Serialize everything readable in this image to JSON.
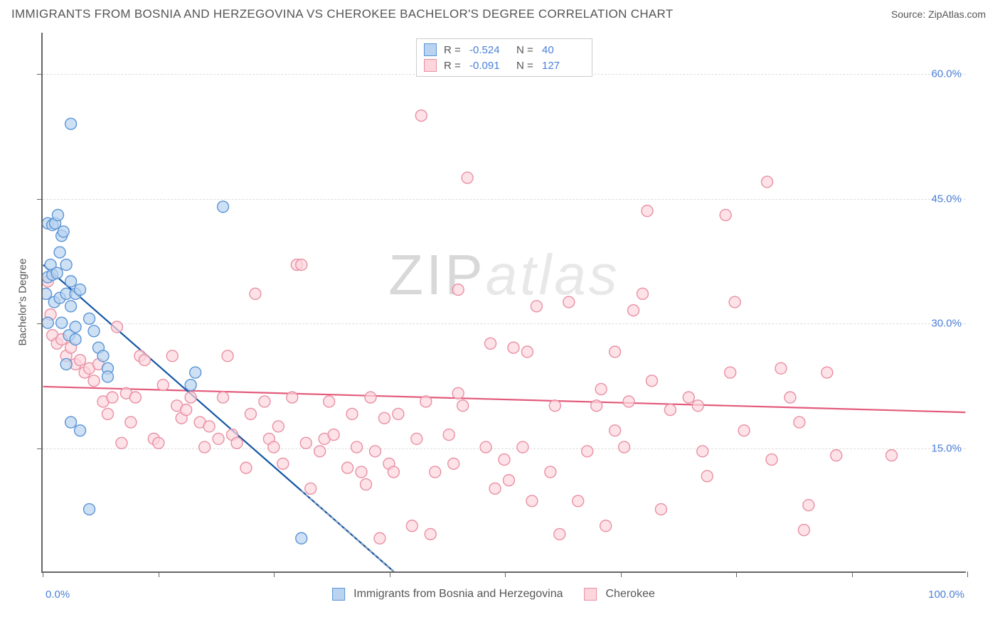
{
  "header": {
    "title": "IMMIGRANTS FROM BOSNIA AND HERZEGOVINA VS CHEROKEE BACHELOR'S DEGREE CORRELATION CHART",
    "source": "Source: ZipAtlas.com"
  },
  "watermark": {
    "part1": "ZIP",
    "part2": "atlas"
  },
  "chart": {
    "type": "scatter",
    "xlim": [
      0,
      100
    ],
    "ylim": [
      0,
      65
    ],
    "x_min_label": "0.0%",
    "x_max_label": "100.0%",
    "yticks": [
      15,
      30,
      45,
      60
    ],
    "ytick_labels": [
      "15.0%",
      "30.0%",
      "45.0%",
      "60.0%"
    ],
    "xtick_positions": [
      0,
      12.5,
      25,
      37.5,
      50,
      62.5,
      75,
      87.5,
      100
    ],
    "yaxis_title": "Bachelor's Degree",
    "grid_color": "#dddddd",
    "axis_color": "#666666",
    "background_color": "#ffffff",
    "marker_radius": 8,
    "marker_stroke_width": 1.4,
    "trend_line_width": 2.2,
    "trend_dash": "4,4",
    "series": [
      {
        "key": "bosnia",
        "label": "Immigrants from Bosnia and Herzegovina",
        "fill_color": "#b9d3f0",
        "stroke_color": "#5a94d6",
        "line_color": "#1255a5",
        "R_label": "R =",
        "R": "-0.524",
        "N_label": "N =",
        "N": "40",
        "trend": {
          "x1": 0,
          "y1": 37,
          "x2": 38,
          "y2": 0
        },
        "points": [
          [
            0.5,
            42
          ],
          [
            1,
            41.8
          ],
          [
            1.3,
            42
          ],
          [
            1.6,
            43
          ],
          [
            2,
            40.5
          ],
          [
            2.2,
            41
          ],
          [
            1.8,
            38.5
          ],
          [
            2.5,
            37
          ],
          [
            0.8,
            37
          ],
          [
            0.5,
            35.5
          ],
          [
            1,
            35.8
          ],
          [
            0.3,
            33.5
          ],
          [
            1.2,
            32.5
          ],
          [
            1.8,
            33
          ],
          [
            2.5,
            33.5
          ],
          [
            3,
            35
          ],
          [
            3,
            32
          ],
          [
            3.5,
            33.5
          ],
          [
            2,
            30
          ],
          [
            2.8,
            28.5
          ],
          [
            3.5,
            29.5
          ],
          [
            3.5,
            28
          ],
          [
            5,
            30.5
          ],
          [
            5.5,
            29
          ],
          [
            6,
            27
          ],
          [
            6.5,
            26
          ],
          [
            7,
            24.5
          ],
          [
            7,
            23.5
          ],
          [
            3,
            18
          ],
          [
            4,
            17
          ],
          [
            5,
            7.5
          ],
          [
            16,
            22.5
          ],
          [
            16.5,
            24
          ],
          [
            19.5,
            44
          ],
          [
            3,
            54
          ],
          [
            28,
            4
          ],
          [
            2.5,
            25
          ],
          [
            0.5,
            30
          ],
          [
            1.5,
            36
          ],
          [
            4,
            34
          ]
        ]
      },
      {
        "key": "cherokee",
        "label": "Cherokee",
        "fill_color": "#fcd5dd",
        "stroke_color": "#e98fa3",
        "line_color": "#e35a7a",
        "R_label": "R =",
        "R": "-0.091",
        "N_label": "N =",
        "N": "127",
        "trend": {
          "x1": 0,
          "y1": 22.3,
          "x2": 100,
          "y2": 19.2
        },
        "points": [
          [
            0.5,
            35
          ],
          [
            0.8,
            31
          ],
          [
            1,
            28.5
          ],
          [
            1.5,
            27.5
          ],
          [
            2,
            28
          ],
          [
            2.5,
            26
          ],
          [
            3,
            27
          ],
          [
            3.5,
            25
          ],
          [
            4,
            25.5
          ],
          [
            4.5,
            24
          ],
          [
            5,
            24.5
          ],
          [
            5.5,
            23
          ],
          [
            6,
            25
          ],
          [
            6.5,
            20.5
          ],
          [
            7,
            19
          ],
          [
            7.5,
            21
          ],
          [
            8,
            29.5
          ],
          [
            8.5,
            15.5
          ],
          [
            9,
            21.5
          ],
          [
            9.5,
            18
          ],
          [
            10,
            21
          ],
          [
            10.5,
            26
          ],
          [
            11,
            25.5
          ],
          [
            12,
            16
          ],
          [
            12.5,
            15.5
          ],
          [
            13,
            22.5
          ],
          [
            14,
            26
          ],
          [
            14.5,
            20
          ],
          [
            15,
            18.5
          ],
          [
            15.5,
            19.5
          ],
          [
            16,
            21
          ],
          [
            17,
            18
          ],
          [
            17.5,
            15
          ],
          [
            18,
            17.5
          ],
          [
            19,
            16
          ],
          [
            19.5,
            21
          ],
          [
            20,
            26
          ],
          [
            20.5,
            16.5
          ],
          [
            21,
            15.5
          ],
          [
            22,
            12.5
          ],
          [
            22.5,
            19
          ],
          [
            23,
            33.5
          ],
          [
            24,
            20.5
          ],
          [
            24.5,
            16
          ],
          [
            25,
            15
          ],
          [
            25.5,
            17.5
          ],
          [
            26,
            13
          ],
          [
            27,
            21
          ],
          [
            27.5,
            37
          ],
          [
            28,
            37
          ],
          [
            28.5,
            15.5
          ],
          [
            29,
            10
          ],
          [
            30,
            14.5
          ],
          [
            30.5,
            16
          ],
          [
            31,
            20.5
          ],
          [
            31.5,
            16.5
          ],
          [
            33,
            12.5
          ],
          [
            34,
            15
          ],
          [
            34.5,
            12
          ],
          [
            35,
            10.5
          ],
          [
            35.5,
            21
          ],
          [
            36,
            14.5
          ],
          [
            37,
            18.5
          ],
          [
            37.5,
            13
          ],
          [
            38,
            12
          ],
          [
            40,
            5.5
          ],
          [
            40.5,
            16
          ],
          [
            41,
            55
          ],
          [
            41.5,
            20.5
          ],
          [
            42,
            4.5
          ],
          [
            42.5,
            12
          ],
          [
            44,
            16.5
          ],
          [
            44.5,
            13
          ],
          [
            45,
            34
          ],
          [
            45.5,
            20
          ],
          [
            46,
            47.5
          ],
          [
            48,
            15
          ],
          [
            48.5,
            27.5
          ],
          [
            49,
            10
          ],
          [
            50,
            13.5
          ],
          [
            50.5,
            11
          ],
          [
            51,
            27
          ],
          [
            52,
            15
          ],
          [
            52.5,
            26.5
          ],
          [
            53,
            8.5
          ],
          [
            53.5,
            32
          ],
          [
            55,
            12
          ],
          [
            55.5,
            20
          ],
          [
            56,
            4.5
          ],
          [
            57,
            32.5
          ],
          [
            58,
            8.5
          ],
          [
            59,
            14.5
          ],
          [
            60,
            20
          ],
          [
            60.5,
            22
          ],
          [
            61,
            5.5
          ],
          [
            62,
            26.5
          ],
          [
            63,
            15
          ],
          [
            63.5,
            20.5
          ],
          [
            64,
            31.5
          ],
          [
            65,
            33.5
          ],
          [
            65.5,
            43.5
          ],
          [
            66,
            23
          ],
          [
            68,
            19.5
          ],
          [
            70,
            21
          ],
          [
            71,
            20
          ],
          [
            71.5,
            14.5
          ],
          [
            72,
            11.5
          ],
          [
            74,
            43
          ],
          [
            74.5,
            24
          ],
          [
            75,
            32.5
          ],
          [
            76,
            17
          ],
          [
            78.5,
            47
          ],
          [
            79,
            13.5
          ],
          [
            80,
            24.5
          ],
          [
            81,
            21
          ],
          [
            82,
            18
          ],
          [
            82.5,
            5
          ],
          [
            83,
            8
          ],
          [
            85,
            24
          ],
          [
            86,
            14
          ],
          [
            92,
            14
          ],
          [
            62,
            17
          ],
          [
            67,
            7.5
          ],
          [
            45,
            21.5
          ],
          [
            38.5,
            19
          ],
          [
            33.5,
            19
          ],
          [
            36.5,
            4
          ]
        ]
      }
    ]
  }
}
